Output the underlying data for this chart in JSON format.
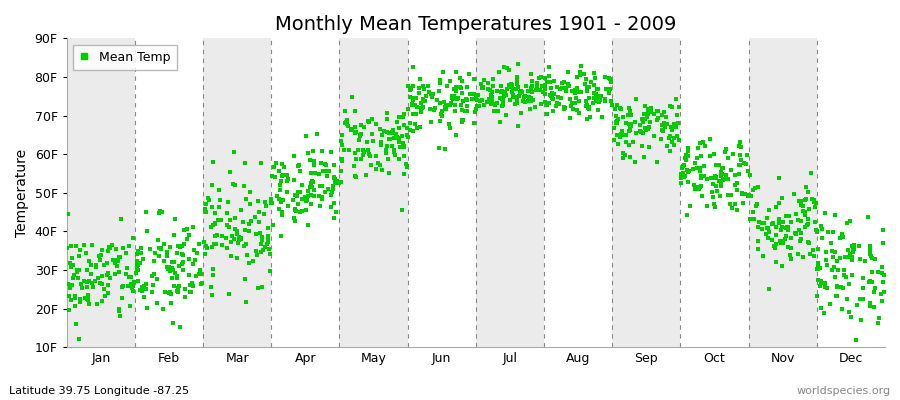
{
  "title": "Monthly Mean Temperatures 1901 - 2009",
  "ylabel": "Temperature",
  "ylim": [
    10,
    90
  ],
  "yticks": [
    10,
    20,
    30,
    40,
    50,
    60,
    70,
    80,
    90
  ],
  "ytick_labels": [
    "10F",
    "20F",
    "30F",
    "40F",
    "50F",
    "60F",
    "70F",
    "80F",
    "90F"
  ],
  "months": [
    "Jan",
    "Feb",
    "Mar",
    "Apr",
    "May",
    "Jun",
    "Jul",
    "Aug",
    "Sep",
    "Oct",
    "Nov",
    "Dec"
  ],
  "marker_color": "#00CC00",
  "marker": "s",
  "marker_size": 2.5,
  "legend_label": "Mean Temp",
  "bg_color": "#FFFFFF",
  "band_color": "#EBEBEB",
  "footnote_left": "Latitude 39.75 Longitude -87.25",
  "footnote_right": "worldspecies.org",
  "monthly_means": [
    28,
    30,
    41,
    52,
    63,
    73,
    76,
    75,
    67,
    55,
    42,
    30
  ],
  "monthly_stds": [
    6,
    7,
    7,
    5,
    5,
    4,
    3,
    3,
    4,
    5,
    6,
    7
  ],
  "num_years": 109,
  "seed": 42,
  "dashed_line_color": "#888888",
  "title_fontsize": 14,
  "ylabel_fontsize": 10,
  "tick_fontsize": 9
}
